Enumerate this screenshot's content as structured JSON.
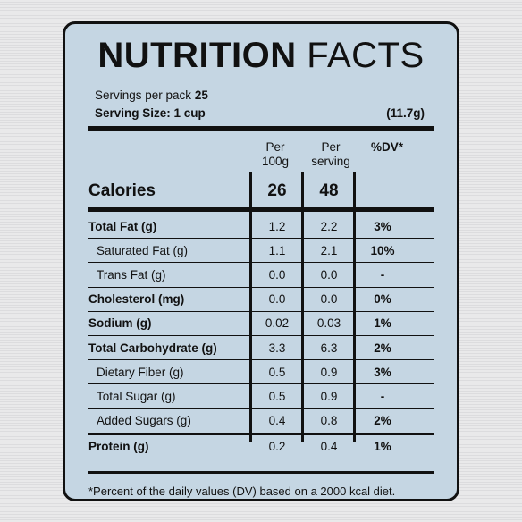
{
  "title": {
    "bold": "NUTRITION",
    "regular": "FACTS"
  },
  "servings": {
    "label": "Servings per pack",
    "value": "25"
  },
  "serving_size": {
    "label": "Serving Size: 1 cup",
    "weight": "(11.7g)"
  },
  "columns": {
    "per100g_line1": "Per",
    "per100g_line2": "100g",
    "perserving_line1": "Per",
    "perserving_line2": "serving",
    "dv": "%DV*"
  },
  "calories": {
    "label": "Calories",
    "per100g": "26",
    "perserving": "48"
  },
  "rows": [
    {
      "label": "Total Fat (g)",
      "per100g": "1.2",
      "perserving": "2.2",
      "dv": "3%"
    },
    {
      "label": "Saturated Fat (g)",
      "per100g": "1.1",
      "perserving": "2.1",
      "dv": "10%"
    },
    {
      "label": "Trans Fat (g)",
      "per100g": "0.0",
      "perserving": "0.0",
      "dv": "-"
    },
    {
      "label": "Cholesterol (mg)",
      "per100g": "0.0",
      "perserving": "0.0",
      "dv": "0%"
    },
    {
      "label": "Sodium (g)",
      "per100g": "0.02",
      "perserving": "0.03",
      "dv": "1%"
    },
    {
      "label": "Total Carbohydrate (g)",
      "per100g": "3.3",
      "perserving": "6.3",
      "dv": "2%"
    },
    {
      "label": "Dietary Fiber (g)",
      "per100g": "0.5",
      "perserving": "0.9",
      "dv": "3%"
    },
    {
      "label": "Total Sugar (g)",
      "per100g": "0.5",
      "perserving": "0.9",
      "dv": "-"
    },
    {
      "label": "Added Sugars (g)",
      "per100g": "0.4",
      "perserving": "0.8",
      "dv": "2%"
    },
    {
      "label": "Protein (g)",
      "per100g": "0.2",
      "perserving": "0.4",
      "dv": "1%"
    }
  ],
  "footnote": "*Percent of the daily values (DV) based on a 2000 kcal diet."
}
